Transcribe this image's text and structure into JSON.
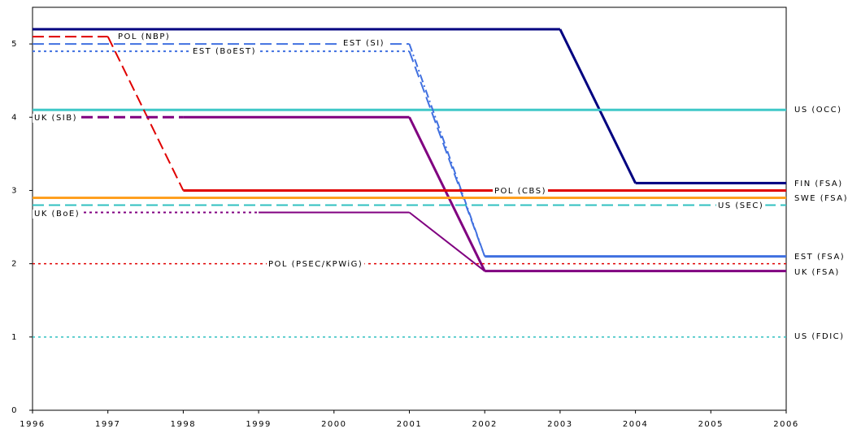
{
  "chart_data": {
    "type": "line",
    "xlim": [
      1996,
      2006
    ],
    "xticks": [
      1996,
      1997,
      1998,
      1999,
      2000,
      2001,
      2002,
      2003,
      2004,
      2005,
      2006
    ],
    "ylim": [
      0,
      5.5
    ],
    "yticks": [
      0,
      1,
      2,
      3,
      4,
      5
    ],
    "series": [
      {
        "name": "FIN (FSA)",
        "color": "#000080",
        "width": 3,
        "x": [
          1996,
          2003,
          2004,
          2006
        ],
        "values": [
          5.2,
          5.2,
          3.1,
          3.1
        ],
        "dashes": [
          "solid",
          "solid",
          "solid"
        ]
      },
      {
        "name": "US (OCC)",
        "color": "#40c8c8",
        "width": 3,
        "x": [
          1996,
          2006
        ],
        "values": [
          4.1,
          4.1
        ],
        "dashes": [
          "solid"
        ]
      },
      {
        "name": "POL (NBP)",
        "color": "#e00000",
        "width": 2,
        "x": [
          1996,
          1997,
          1998
        ],
        "values": [
          5.1,
          5.1,
          3.0
        ],
        "dashes": [
          "dashed",
          "dashed"
        ]
      },
      {
        "name": "EST (SI)",
        "color": "#4070e0",
        "width": 2,
        "x": [
          1996,
          2001,
          2002
        ],
        "values": [
          5.0,
          5.0,
          2.1
        ],
        "dashes": [
          "dashed",
          "dashdot"
        ]
      },
      {
        "name": "EST (BoEST)",
        "color": "#4070e0",
        "width": 2,
        "x": [
          1996,
          2001,
          2002
        ],
        "values": [
          4.9,
          4.9,
          2.1
        ],
        "dashes": [
          "dotted",
          "dashed"
        ]
      },
      {
        "name": "UK (SIB)",
        "color": "#800080",
        "width": 3,
        "x": [
          1996,
          1998,
          2001,
          2002
        ],
        "values": [
          4.0,
          4.0,
          4.0,
          1.9
        ],
        "dashes": [
          "dashed",
          "solid",
          "solid"
        ]
      },
      {
        "name": "POL (CBS)",
        "color": "#e00000",
        "width": 3,
        "x": [
          1998,
          2006
        ],
        "values": [
          3.0,
          3.0
        ],
        "dashes": [
          "solid"
        ]
      },
      {
        "name": "SWE (FSA)",
        "color": "#ffa020",
        "width": 3,
        "x": [
          1996,
          2006
        ],
        "values": [
          2.9,
          2.9
        ],
        "dashes": [
          "solid"
        ]
      },
      {
        "name": "US (SEC)",
        "color": "#30c0c0",
        "width": 2,
        "x": [
          1996,
          2006
        ],
        "values": [
          2.8,
          2.8
        ],
        "dashes": [
          "dashed"
        ]
      },
      {
        "name": "UK (BoE)",
        "color": "#800080",
        "width": 2,
        "x": [
          1996,
          1999,
          2001,
          2002
        ],
        "values": [
          2.7,
          2.7,
          2.7,
          1.9
        ],
        "dashes": [
          "dotted",
          "solid",
          "solid"
        ]
      },
      {
        "name": "EST (FSA)",
        "color": "#4070e0",
        "width": 3,
        "x": [
          2002,
          2006
        ],
        "values": [
          2.1,
          2.1
        ],
        "dashes": [
          "solid"
        ]
      },
      {
        "name": "POL (PSEC/KPWiG)",
        "color": "#e00000",
        "width": 1.5,
        "x": [
          1996,
          2006
        ],
        "values": [
          2.0,
          2.0
        ],
        "dashes": [
          "dotted"
        ]
      },
      {
        "name": "UK (FSA)",
        "color": "#800080",
        "width": 3,
        "x": [
          2002,
          2006
        ],
        "values": [
          1.9,
          1.9
        ],
        "dashes": [
          "solid"
        ]
      },
      {
        "name": "US (FDIC)",
        "color": "#30c0c0",
        "width": 1.5,
        "x": [
          1996,
          2006
        ],
        "values": [
          1.0,
          1.0
        ],
        "dashes": [
          "dotted"
        ]
      }
    ]
  }
}
